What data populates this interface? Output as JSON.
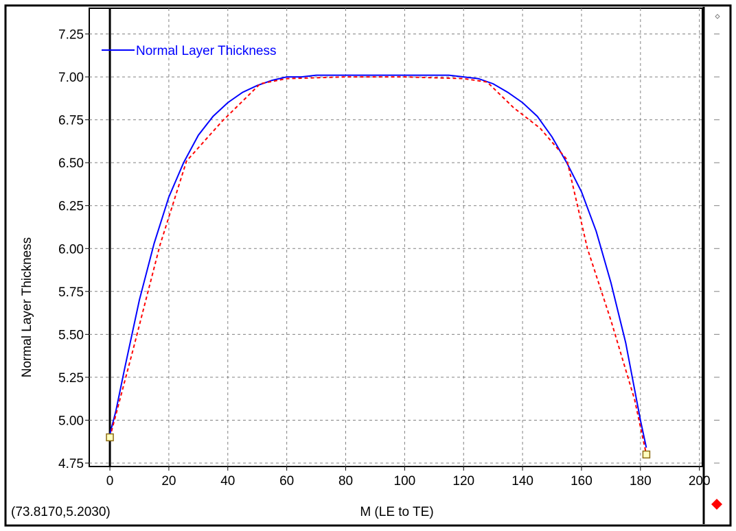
{
  "colors": {
    "accent": "#0000ff",
    "control_line": "#ff0000",
    "grid": "#808080",
    "control_point": "#8b6a10"
  },
  "cursor_readout": "(73.8170,5.2030)",
  "side_panel": {
    "marker_icon": "red-diamond-icon"
  },
  "chart_data": {
    "type": "line",
    "xlabel": "M (LE to TE)",
    "ylabel": "Normal Layer Thickness",
    "xlim": [
      -7,
      201
    ],
    "ylim": [
      4.73,
      7.4
    ],
    "x_ticks": [
      0,
      20,
      40,
      60,
      80,
      100,
      120,
      140,
      160,
      180,
      200
    ],
    "x_tick_labels": [
      "0",
      "20",
      "40",
      "60",
      "80",
      "100",
      "120",
      "140",
      "160",
      "180",
      "200"
    ],
    "y_ticks": [
      4.75,
      5.0,
      5.25,
      5.5,
      5.75,
      6.0,
      6.25,
      6.5,
      6.75,
      7.0,
      7.25
    ],
    "y_tick_labels": [
      "4.75",
      "5.00",
      "5.25",
      "5.50",
      "5.75",
      "6.00",
      "6.25",
      "6.50",
      "6.75",
      "7.00",
      "7.25"
    ],
    "grid": true,
    "legend": {
      "position": "top-left",
      "entries": [
        "Normal Layer Thickness"
      ]
    },
    "series": [
      {
        "name": "Normal Layer Thickness",
        "color": "#0000ff",
        "style": "solid",
        "x": [
          0,
          2,
          5,
          10,
          15,
          20,
          25,
          30,
          35,
          40,
          45,
          50,
          55,
          60,
          65,
          70,
          75,
          80,
          102,
          105,
          110,
          115,
          120,
          125,
          130,
          135,
          140,
          145,
          150,
          155,
          160,
          165,
          170,
          175,
          180,
          182
        ],
        "y": [
          4.92,
          5.05,
          5.3,
          5.7,
          6.03,
          6.3,
          6.5,
          6.66,
          6.77,
          6.85,
          6.91,
          6.95,
          6.98,
          7.0,
          7.0,
          7.01,
          7.01,
          7.01,
          7.01,
          7.01,
          7.01,
          7.01,
          7.0,
          6.99,
          6.96,
          6.91,
          6.85,
          6.77,
          6.65,
          6.5,
          6.33,
          6.1,
          5.8,
          5.45,
          5.0,
          4.84
        ]
      },
      {
        "color": "#ff0000",
        "style": "dashed",
        "x": [
          0,
          8,
          17,
          26,
          38,
          51,
          60,
          80,
          100,
          120,
          128,
          137,
          146,
          155,
          162,
          170,
          178,
          182
        ],
        "y": [
          4.9,
          5.42,
          6.02,
          6.51,
          6.74,
          6.96,
          6.99,
          7.0,
          7.0,
          6.99,
          6.97,
          6.82,
          6.7,
          6.52,
          6.0,
          5.58,
          5.12,
          4.8
        ]
      }
    ],
    "control_points": [
      {
        "x": 0,
        "y": 4.9
      },
      {
        "x": 182,
        "y": 4.8
      }
    ]
  }
}
